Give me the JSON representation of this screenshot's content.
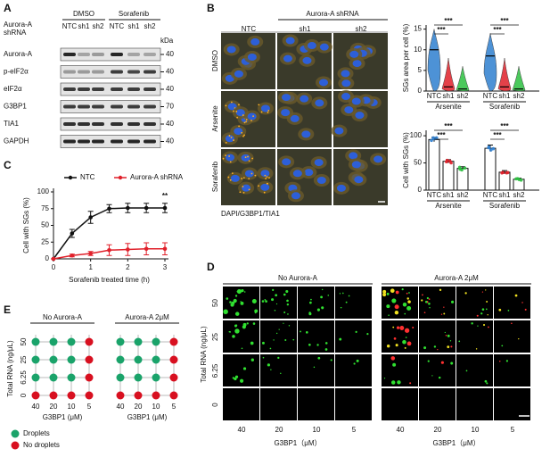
{
  "panel_labels": [
    "A",
    "B",
    "C",
    "D",
    "E"
  ],
  "panel_A": {
    "group_label": [
      "Aurora-A",
      "shRNA"
    ],
    "treatments": [
      "DMSO",
      "Sorafenib"
    ],
    "lanes": [
      "NTC",
      "sh1",
      "sh2",
      "NTC",
      "sh1",
      "sh2"
    ],
    "unit": "kDa",
    "blots": [
      {
        "name": "Aurora-A",
        "marker": "40"
      },
      {
        "name": "p-eIF2α",
        "marker": "40"
      },
      {
        "name": "eIF2α",
        "marker": "40"
      },
      {
        "name": "G3BP1",
        "marker": "70"
      },
      {
        "name": "TIA1",
        "marker": "40"
      },
      {
        "name": "GAPDH",
        "marker": "40"
      }
    ]
  },
  "panel_B_images": {
    "columns": [
      "NTC",
      "sh1",
      "sh2"
    ],
    "column_group": "Aurora-A shRNA",
    "rows": [
      "DMSO",
      "Arsenite",
      "Sorafenib"
    ],
    "stain_legend": [
      {
        "text": "DAPI/",
        "color": "#1f1fe0"
      },
      {
        "text": "G3BP1/",
        "color": "#e0202a"
      },
      {
        "text": "TIA1",
        "color": "#22b040"
      }
    ]
  },
  "chart_data": [
    {
      "type": "violin",
      "y_label": "SGs area per cell (%)",
      "categories": [
        "NTC",
        "sh1",
        "sh2",
        "NTC",
        "sh1",
        "sh2"
      ],
      "groups": [
        "Arsenite",
        "Sorafenib"
      ],
      "colors": [
        "#2f7fd0",
        "#e0202a",
        "#2cc040",
        "#2f7fd0",
        "#e0202a",
        "#2cc040"
      ],
      "values": [
        10,
        1,
        0.5,
        8.5,
        1,
        0.5
      ],
      "max": [
        15,
        8,
        6,
        14,
        8,
        6
      ],
      "ylim": [
        0,
        16
      ],
      "yticks": [
        0,
        5,
        10,
        15
      ],
      "annotations": [
        "***",
        "***",
        "***",
        "***"
      ]
    },
    {
      "type": "bar",
      "y_label": "Cell with SGs (%)",
      "categories": [
        "NTC",
        "sh1",
        "sh2",
        "NTC",
        "sh1",
        "sh2"
      ],
      "groups": [
        "Arsenite",
        "Sorafenib"
      ],
      "colors": [
        "#2f7fd0",
        "#e0202a",
        "#2cc040",
        "#2f7fd0",
        "#e0202a",
        "#2cc040"
      ],
      "values": [
        93,
        53,
        40,
        77,
        33,
        20
      ],
      "errors": [
        4,
        3,
        3,
        6,
        3,
        2
      ],
      "ylim": [
        0,
        110
      ],
      "yticks": [
        0,
        50,
        100
      ],
      "annotations": [
        "***",
        "***",
        "***",
        "***"
      ]
    },
    {
      "type": "line",
      "x_label": "Sorafenib treated time (h)",
      "y_label": "Cell with SGs (%)",
      "x": [
        0,
        0.5,
        1,
        1.5,
        2,
        2.5,
        3
      ],
      "series": [
        {
          "name": "NTC",
          "color": "#111111",
          "values": [
            0,
            38,
            62,
            75,
            76,
            76,
            76
          ],
          "errors": [
            0,
            6,
            9,
            6,
            7,
            7,
            7
          ]
        },
        {
          "name": "Aurora-A shRNA",
          "color": "#e0202a",
          "values": [
            0,
            5,
            8,
            13,
            14,
            15,
            15
          ],
          "errors": [
            0,
            2,
            3,
            8,
            9,
            9,
            9
          ]
        }
      ],
      "xlim": [
        0,
        3
      ],
      "ylim": [
        0,
        100
      ],
      "xticks": [
        0,
        1,
        2,
        3
      ],
      "yticks": [
        0,
        25,
        50,
        75,
        100
      ],
      "annotation": "**"
    }
  ],
  "panel_D": {
    "conditions": [
      "No Aurora-A",
      "Aurora-A 2μM"
    ],
    "rows": [
      "50",
      "25",
      "6.25",
      "0"
    ],
    "columns": [
      "40",
      "20",
      "10",
      "5"
    ],
    "y_label": "Total RNA (ng/μL)",
    "x_label": "G3BP1（μM）"
  },
  "panel_E": {
    "grids": [
      {
        "title": "No Aurora-A",
        "states": [
          [
            true,
            true,
            true,
            false
          ],
          [
            true,
            true,
            true,
            false
          ],
          [
            true,
            true,
            true,
            false
          ],
          [
            false,
            false,
            false,
            false
          ]
        ]
      },
      {
        "title": "Aurora-A 2μM",
        "states": [
          [
            true,
            true,
            true,
            false
          ],
          [
            true,
            true,
            true,
            false
          ],
          [
            true,
            true,
            true,
            false
          ],
          [
            false,
            false,
            false,
            false
          ]
        ]
      }
    ],
    "rows": [
      "50",
      "25",
      "6.25",
      "0"
    ],
    "columns": [
      "40",
      "20",
      "10",
      "5"
    ],
    "y_label": "Total RNA (ng/μL)",
    "x_label": "G3BP1 (μM)",
    "legend": [
      {
        "label": "Droplets",
        "color": "#1aa36a"
      },
      {
        "label": "No droplets",
        "color": "#d81020"
      }
    ]
  }
}
